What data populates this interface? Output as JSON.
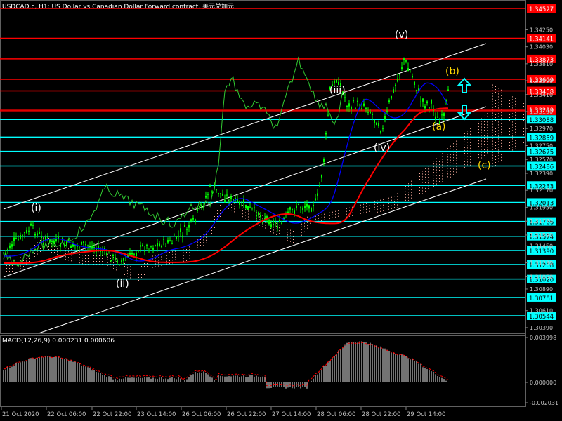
{
  "window": {
    "title": "USDCAD.c, H1:  US Dollar vs Canadian Dollar Forward contract. 美元兑加元"
  },
  "colors": {
    "background": "#000000",
    "candle": "#00ff00",
    "trend_channel": "#ffffff",
    "cyan_level": "#00ffff",
    "red_level": "#ff0000",
    "ma_fast": "#0000ff",
    "ma_slow": "#ff0000",
    "chikou": "#32cd32",
    "kumo": "#ffb0a0",
    "macd_hist": "#c0c0c0",
    "macd_signal": "#ff0000",
    "wave_white": "#ffffff",
    "wave_yellow": "#ffd700",
    "arrow": "#00ffff"
  },
  "price_axis": {
    "ticks": [
      "1.34250",
      "1.34030",
      "1.33810",
      "1.33590",
      "1.33410",
      "1.33190",
      "1.32970",
      "1.32750",
      "1.32570",
      "1.32390",
      "1.32170",
      "1.31950",
      "1.31770",
      "1.31590",
      "1.31450",
      "1.31230",
      "1.31050",
      "1.30890",
      "1.30610",
      "1.30390"
    ],
    "red_levels": [
      "1.34527",
      "1.34141",
      "1.33873",
      "1.33609",
      "1.33458",
      "1.33200",
      "1.33219"
    ],
    "cyan_levels": [
      "1.33088",
      "1.32859",
      "1.32675",
      "1.32486",
      "1.32233",
      "1.32013",
      "1.31766",
      "1.31574",
      "1.31390",
      "1.31208",
      "1.31020",
      "1.30781",
      "1.30544"
    ]
  },
  "macd_panel": {
    "label": "MACD(12,26,9) 0.000231 0.000606",
    "ticks": [
      "0.003998",
      "0.000000",
      "-0.002031"
    ]
  },
  "time_axis": {
    "labels": [
      "21 Oct 2020",
      "22 Oct 06:00",
      "22 Oct 22:00",
      "23 Oct 14:00",
      "26 Oct 06:00",
      "26 Oct 22:00",
      "27 Oct 14:00",
      "28 Oct 06:00",
      "28 Oct 22:00",
      "29 Oct 14:00"
    ]
  },
  "wave_labels": {
    "i": "(i)",
    "ii": "(ii)",
    "iii": "(iii)",
    "iv": "(iv)",
    "v": "(v)",
    "a": "(a)",
    "b": "(b)",
    "c": "(c)"
  }
}
